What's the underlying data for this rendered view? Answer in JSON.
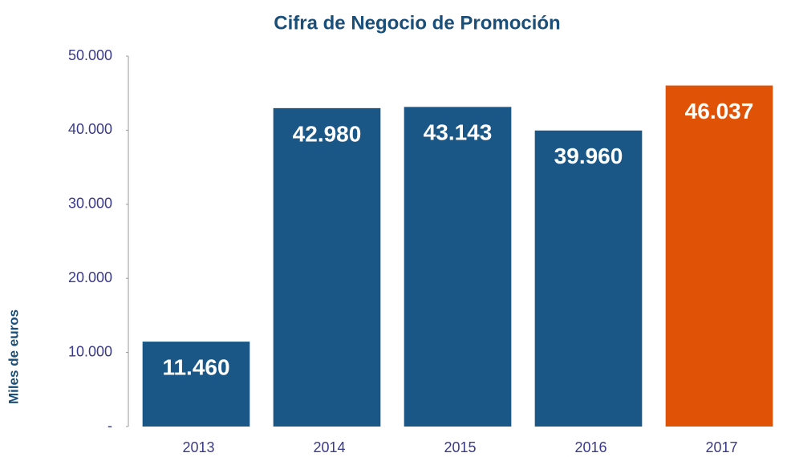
{
  "chart_data": {
    "type": "bar",
    "title": "Cifra de Negocio de Promoción",
    "y_label": "Miles de euros",
    "categories": [
      "2013",
      "2014",
      "2015",
      "2016",
      "2017"
    ],
    "values": [
      11460,
      42980,
      43143,
      39960,
      46037
    ],
    "value_labels": [
      "11.460",
      "42.980",
      "43.143",
      "39.960",
      "46.037"
    ],
    "colors": [
      "#1a5787",
      "#1a5787",
      "#1a5787",
      "#1a5787",
      "#e05206"
    ],
    "ylim": [
      0,
      50000
    ],
    "yticks": [
      {
        "value": 0,
        "label": "-"
      },
      {
        "value": 10000,
        "label": "10.000"
      },
      {
        "value": 20000,
        "label": "20.000"
      },
      {
        "value": 30000,
        "label": "30.000"
      },
      {
        "value": 40000,
        "label": "40.000"
      },
      {
        "value": 50000,
        "label": "50.000"
      }
    ],
    "grid": false
  }
}
